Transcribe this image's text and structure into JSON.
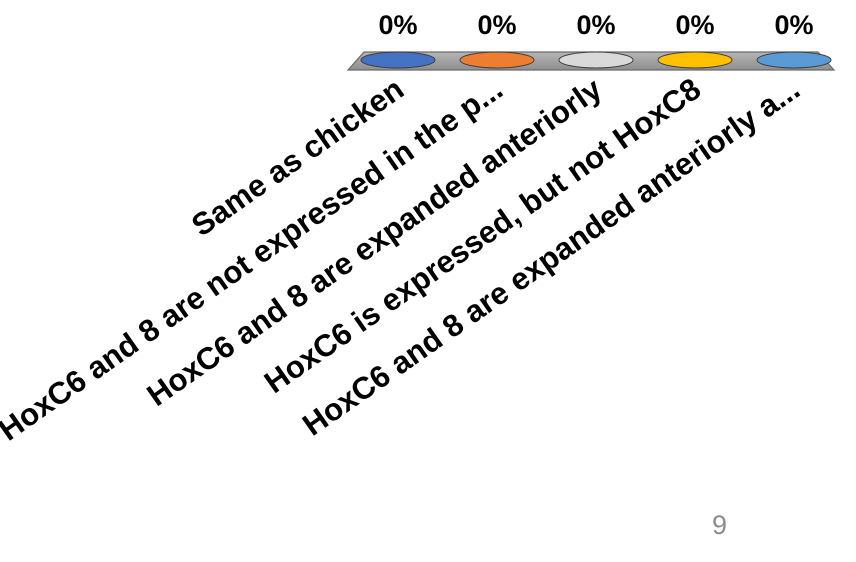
{
  "chart_data": {
    "type": "bar",
    "categories": [
      "Same as chicken",
      "HoxC6 and 8 are not expressed in the p...",
      "HoxC6 and 8 are expanded anteriorly",
      "HoxC6 is expressed, but not HoxC8",
      "HoxC6 and 8 are expanded anteriorly a..."
    ],
    "values": [
      0,
      0,
      0,
      0,
      0
    ],
    "value_labels": [
      "0%",
      "0%",
      "0%",
      "0%",
      "0%"
    ],
    "ylim": [
      0,
      100
    ],
    "colors": [
      "#4472c4",
      "#ed7d31",
      "#d9d9d9",
      "#ffc000",
      "#5b9bd5"
    ]
  },
  "slide": {
    "number": "9"
  }
}
